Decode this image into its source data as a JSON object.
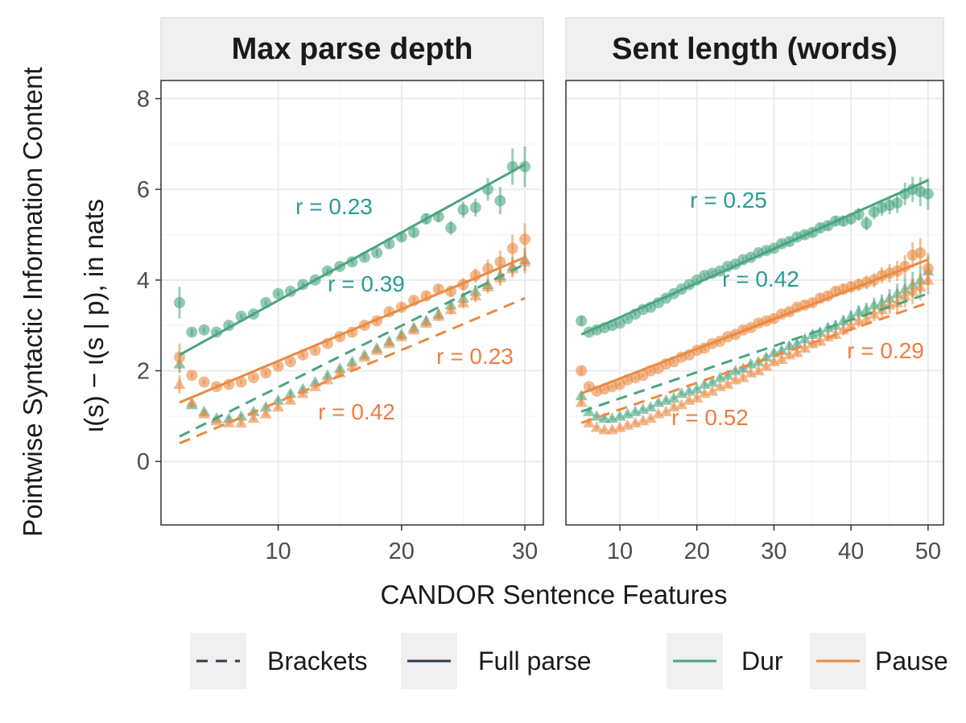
{
  "chart_data": {
    "type": "scatter",
    "y_axis_title_line1": "Pointwise Syntactic Information Content",
    "y_axis_title_line2": "ι(s) − ι(s | p), in nats",
    "x_axis_title": "CANDOR Sentence Features",
    "colors": {
      "dur": "#4aa57f",
      "pause": "#ea8a41",
      "dur_label": "#2a9a96",
      "pause_label": "#f07c3f",
      "legend_line": "#2f3b4c"
    },
    "legend": {
      "linetype": [
        {
          "key": "brackets",
          "label": "Brackets",
          "style": "dashed"
        },
        {
          "key": "full",
          "label": "Full parse",
          "style": "solid"
        }
      ],
      "color": [
        {
          "key": "dur",
          "label": "Dur"
        },
        {
          "key": "pause",
          "label": "Pause"
        }
      ]
    },
    "panels": [
      {
        "title": "Max parse depth",
        "xlim": [
          0.5,
          31.5
        ],
        "ylim": [
          -1.4,
          8.4
        ],
        "xticks": [
          10,
          20,
          30
        ],
        "yticks": [
          0,
          2,
          4,
          6,
          8
        ],
        "x": [
          2,
          3,
          4,
          5,
          6,
          7,
          8,
          9,
          10,
          11,
          12,
          13,
          14,
          15,
          16,
          17,
          18,
          19,
          20,
          21,
          22,
          23,
          24,
          25,
          26,
          27,
          28,
          29,
          30
        ],
        "series": [
          {
            "color": "dur",
            "parse": "full",
            "marker": "circle",
            "values": [
              3.5,
              2.85,
              2.9,
              2.85,
              3.0,
              3.2,
              3.25,
              3.5,
              3.7,
              3.75,
              3.9,
              4.0,
              4.2,
              4.3,
              4.4,
              4.5,
              4.6,
              4.8,
              4.95,
              5.05,
              5.35,
              5.4,
              5.15,
              5.55,
              5.6,
              6.0,
              5.75,
              6.5,
              6.5
            ],
            "err": [
              0.35,
              0.08,
              0.06,
              0.05,
              0.05,
              0.05,
              0.05,
              0.05,
              0.05,
              0.05,
              0.05,
              0.05,
              0.06,
              0.06,
              0.06,
              0.07,
              0.07,
              0.08,
              0.09,
              0.1,
              0.12,
              0.13,
              0.15,
              0.18,
              0.2,
              0.25,
              0.3,
              0.4,
              0.45
            ],
            "fit": [
              2.35,
              6.55
            ],
            "r": "r = 0.23"
          },
          {
            "color": "dur",
            "parse": "brackets",
            "marker": "triangle",
            "values": [
              2.15,
              1.25,
              1.1,
              0.95,
              0.95,
              1.0,
              1.1,
              1.2,
              1.35,
              1.5,
              1.6,
              1.75,
              1.9,
              2.05,
              2.2,
              2.35,
              2.5,
              2.65,
              2.8,
              2.95,
              3.1,
              3.25,
              3.45,
              3.6,
              3.75,
              3.9,
              4.1,
              4.3,
              4.45
            ],
            "err": [
              0.2,
              0.06,
              0.05,
              0.05,
              0.05,
              0.05,
              0.05,
              0.05,
              0.05,
              0.05,
              0.05,
              0.05,
              0.05,
              0.05,
              0.06,
              0.06,
              0.06,
              0.07,
              0.07,
              0.08,
              0.09,
              0.1,
              0.11,
              0.12,
              0.14,
              0.15,
              0.18,
              0.2,
              0.25
            ],
            "fit": [
              0.55,
              4.35
            ],
            "r": "r = 0.39"
          },
          {
            "color": "pause",
            "parse": "full",
            "marker": "circle",
            "values": [
              2.3,
              1.9,
              1.75,
              1.65,
              1.7,
              1.75,
              1.85,
              1.95,
              2.1,
              2.2,
              2.35,
              2.45,
              2.6,
              2.75,
              2.85,
              3.0,
              3.1,
              3.3,
              3.4,
              3.55,
              3.65,
              3.8,
              3.75,
              3.9,
              4.1,
              4.25,
              4.4,
              4.7,
              4.9
            ],
            "err": [
              0.3,
              0.07,
              0.05,
              0.05,
              0.05,
              0.05,
              0.05,
              0.05,
              0.05,
              0.05,
              0.05,
              0.05,
              0.05,
              0.06,
              0.06,
              0.06,
              0.07,
              0.07,
              0.08,
              0.08,
              0.09,
              0.1,
              0.12,
              0.14,
              0.16,
              0.2,
              0.25,
              0.3,
              0.35
            ],
            "fit": [
              1.3,
              4.5
            ],
            "r": "r = 0.23"
          },
          {
            "color": "pause",
            "parse": "brackets",
            "marker": "triangle",
            "values": [
              1.7,
              1.3,
              1.05,
              0.9,
              0.85,
              0.85,
              0.95,
              1.05,
              1.2,
              1.35,
              1.5,
              1.65,
              1.8,
              1.95,
              2.1,
              2.3,
              2.45,
              2.6,
              2.75,
              2.9,
              3.05,
              3.2,
              3.35,
              3.5,
              3.65,
              3.85,
              4.05,
              4.25,
              4.4
            ],
            "err": [
              0.2,
              0.06,
              0.05,
              0.05,
              0.05,
              0.05,
              0.05,
              0.05,
              0.05,
              0.05,
              0.05,
              0.05,
              0.05,
              0.05,
              0.06,
              0.06,
              0.06,
              0.07,
              0.07,
              0.08,
              0.09,
              0.1,
              0.11,
              0.12,
              0.14,
              0.15,
              0.18,
              0.2,
              0.25
            ],
            "fit": [
              0.4,
              3.6
            ],
            "r": "r = 0.42"
          }
        ]
      },
      {
        "title": "Sent length (words)",
        "xlim": [
          3,
          52
        ],
        "ylim": [
          -1.4,
          8.4
        ],
        "xticks": [
          10,
          20,
          30,
          40,
          50
        ],
        "yticks": [
          0,
          2,
          4,
          6,
          8
        ],
        "x": [
          5,
          6,
          7,
          8,
          9,
          10,
          11,
          12,
          13,
          14,
          15,
          16,
          17,
          18,
          19,
          20,
          21,
          22,
          23,
          24,
          25,
          26,
          27,
          28,
          29,
          30,
          31,
          32,
          33,
          34,
          35,
          36,
          37,
          38,
          39,
          40,
          41,
          42,
          43,
          44,
          45,
          46,
          47,
          48,
          49,
          50
        ],
        "series": [
          {
            "color": "dur",
            "parse": "full",
            "marker": "circle",
            "values": [
              3.1,
              2.85,
              2.9,
              2.95,
              3.0,
              3.05,
              3.15,
              3.25,
              3.35,
              3.4,
              3.5,
              3.6,
              3.7,
              3.8,
              3.9,
              4.0,
              4.1,
              4.15,
              4.2,
              4.3,
              4.35,
              4.45,
              4.5,
              4.6,
              4.65,
              4.7,
              4.8,
              4.85,
              4.95,
              5.0,
              5.05,
              5.15,
              5.2,
              5.3,
              5.3,
              5.35,
              5.45,
              5.25,
              5.5,
              5.6,
              5.65,
              5.7,
              5.9,
              6.0,
              5.95,
              5.9
            ],
            "err": [
              0.1,
              0.05,
              0.04,
              0.04,
              0.04,
              0.04,
              0.04,
              0.04,
              0.04,
              0.04,
              0.04,
              0.04,
              0.04,
              0.04,
              0.04,
              0.04,
              0.05,
              0.05,
              0.05,
              0.05,
              0.05,
              0.06,
              0.06,
              0.06,
              0.07,
              0.07,
              0.07,
              0.08,
              0.08,
              0.09,
              0.09,
              0.1,
              0.1,
              0.11,
              0.12,
              0.13,
              0.14,
              0.15,
              0.16,
              0.18,
              0.2,
              0.22,
              0.25,
              0.28,
              0.32,
              0.35
            ],
            "fit": [
              2.8,
              6.2
            ],
            "r": "r = 0.25"
          },
          {
            "color": "dur",
            "parse": "brackets",
            "marker": "triangle",
            "values": [
              1.45,
              1.1,
              1.0,
              0.95,
              0.95,
              1.0,
              1.05,
              1.1,
              1.15,
              1.2,
              1.3,
              1.35,
              1.4,
              1.5,
              1.55,
              1.6,
              1.7,
              1.75,
              1.85,
              1.9,
              2.0,
              2.05,
              2.15,
              2.2,
              2.3,
              2.4,
              2.45,
              2.55,
              2.6,
              2.7,
              2.8,
              2.85,
              2.95,
              3.0,
              3.1,
              3.2,
              3.3,
              3.35,
              3.45,
              3.5,
              3.6,
              3.7,
              3.8,
              3.9,
              4.0,
              4.2
            ],
            "err": [
              0.08,
              0.04,
              0.04,
              0.04,
              0.04,
              0.04,
              0.04,
              0.04,
              0.04,
              0.04,
              0.04,
              0.04,
              0.04,
              0.04,
              0.04,
              0.04,
              0.05,
              0.05,
              0.05,
              0.05,
              0.05,
              0.06,
              0.06,
              0.06,
              0.07,
              0.07,
              0.07,
              0.08,
              0.08,
              0.09,
              0.09,
              0.1,
              0.1,
              0.11,
              0.12,
              0.13,
              0.14,
              0.15,
              0.16,
              0.18,
              0.2,
              0.22,
              0.25,
              0.28,
              0.3,
              0.32
            ],
            "fit": [
              1.1,
              3.7
            ],
            "r": "r = 0.42"
          },
          {
            "color": "pause",
            "parse": "full",
            "marker": "circle",
            "values": [
              2.0,
              1.65,
              1.55,
              1.6,
              1.65,
              1.7,
              1.8,
              1.85,
              1.9,
              2.0,
              2.05,
              2.15,
              2.2,
              2.3,
              2.35,
              2.45,
              2.5,
              2.6,
              2.65,
              2.75,
              2.8,
              2.9,
              2.95,
              3.05,
              3.1,
              3.15,
              3.25,
              3.3,
              3.4,
              3.45,
              3.5,
              3.6,
              3.65,
              3.75,
              3.8,
              3.85,
              3.9,
              3.95,
              4.0,
              4.1,
              4.15,
              4.2,
              4.3,
              4.55,
              4.6,
              4.25
            ],
            "err": [
              0.1,
              0.05,
              0.04,
              0.04,
              0.04,
              0.04,
              0.04,
              0.04,
              0.04,
              0.04,
              0.04,
              0.04,
              0.04,
              0.04,
              0.04,
              0.04,
              0.05,
              0.05,
              0.05,
              0.05,
              0.05,
              0.06,
              0.06,
              0.06,
              0.07,
              0.07,
              0.07,
              0.08,
              0.08,
              0.09,
              0.09,
              0.1,
              0.1,
              0.11,
              0.12,
              0.13,
              0.14,
              0.15,
              0.16,
              0.18,
              0.2,
              0.22,
              0.25,
              0.28,
              0.32,
              0.35
            ],
            "fit": [
              1.5,
              4.45
            ],
            "r": "r = 0.29"
          },
          {
            "color": "pause",
            "parse": "brackets",
            "marker": "triangle",
            "values": [
              1.3,
              0.85,
              0.75,
              0.7,
              0.7,
              0.75,
              0.8,
              0.85,
              0.9,
              0.95,
              1.05,
              1.1,
              1.2,
              1.25,
              1.35,
              1.4,
              1.5,
              1.55,
              1.65,
              1.7,
              1.8,
              1.85,
              1.95,
              2.0,
              2.1,
              2.2,
              2.25,
              2.35,
              2.4,
              2.5,
              2.6,
              2.65,
              2.75,
              2.8,
              2.9,
              3.0,
              3.1,
              3.15,
              3.25,
              3.35,
              3.45,
              3.5,
              3.65,
              3.75,
              3.85,
              4.0
            ],
            "err": [
              0.08,
              0.04,
              0.04,
              0.04,
              0.04,
              0.04,
              0.04,
              0.04,
              0.04,
              0.04,
              0.04,
              0.04,
              0.04,
              0.04,
              0.04,
              0.04,
              0.05,
              0.05,
              0.05,
              0.05,
              0.05,
              0.06,
              0.06,
              0.06,
              0.07,
              0.07,
              0.07,
              0.08,
              0.08,
              0.09,
              0.09,
              0.1,
              0.1,
              0.11,
              0.12,
              0.13,
              0.14,
              0.15,
              0.16,
              0.18,
              0.2,
              0.22,
              0.25,
              0.28,
              0.3,
              0.32
            ],
            "fit": [
              0.85,
              3.5
            ],
            "r": "r = 0.52"
          }
        ]
      }
    ]
  }
}
